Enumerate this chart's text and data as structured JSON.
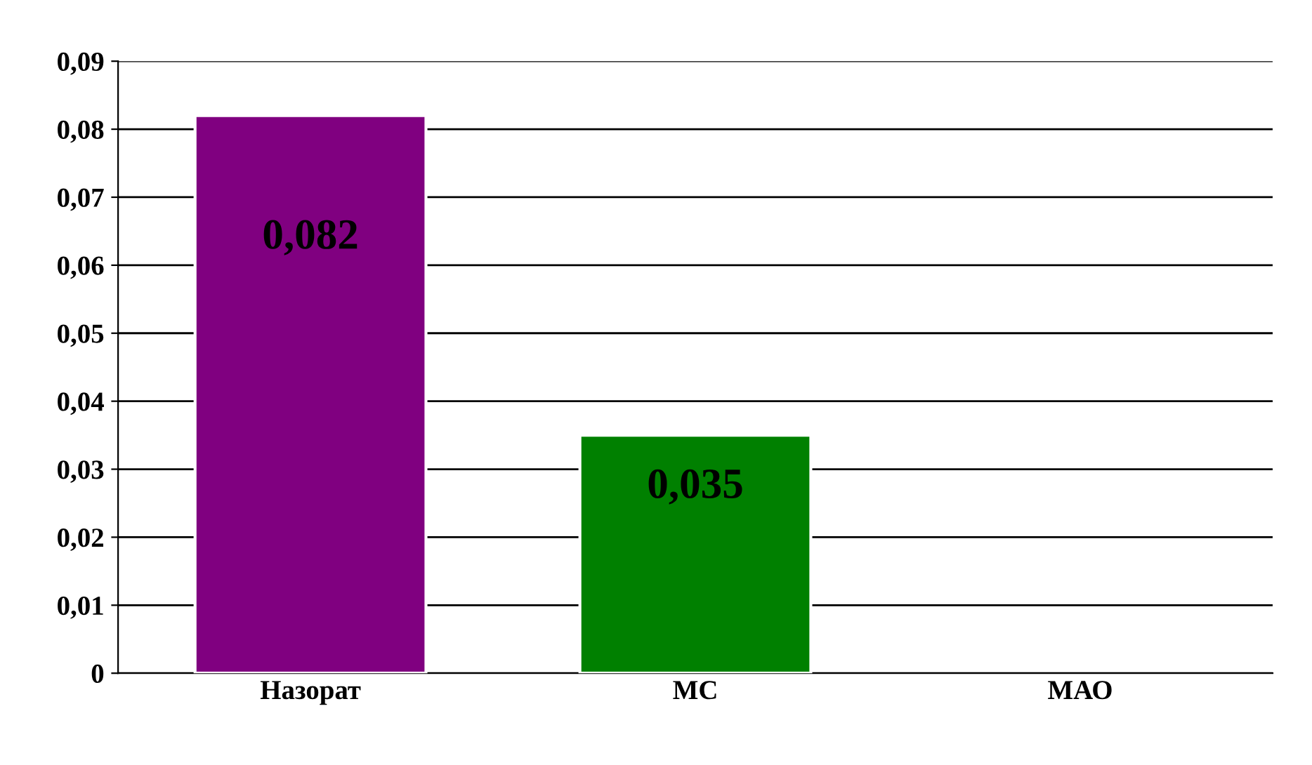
{
  "chart_data": {
    "type": "bar",
    "categories": [
      "Назорат",
      "МС",
      "МАО"
    ],
    "values": [
      0.082,
      0.035,
      null
    ],
    "colors": [
      "#800080",
      "#008000",
      "#808080"
    ],
    "value_labels": [
      "0,082",
      "0,035",
      null
    ],
    "ylim": [
      0,
      0.09
    ],
    "yticks": [
      {
        "value": 0,
        "label": "0"
      },
      {
        "value": 0.01,
        "label": "0,01"
      },
      {
        "value": 0.02,
        "label": "0,02"
      },
      {
        "value": 0.03,
        "label": "0,03"
      },
      {
        "value": 0.04,
        "label": "0,04"
      },
      {
        "value": 0.05,
        "label": "0,05"
      },
      {
        "value": 0.06,
        "label": "0,06"
      },
      {
        "value": 0.07,
        "label": "0,07"
      },
      {
        "value": 0.08,
        "label": "0,08"
      },
      {
        "value": 0.09,
        "label": "0,09"
      }
    ],
    "grid": "y"
  }
}
